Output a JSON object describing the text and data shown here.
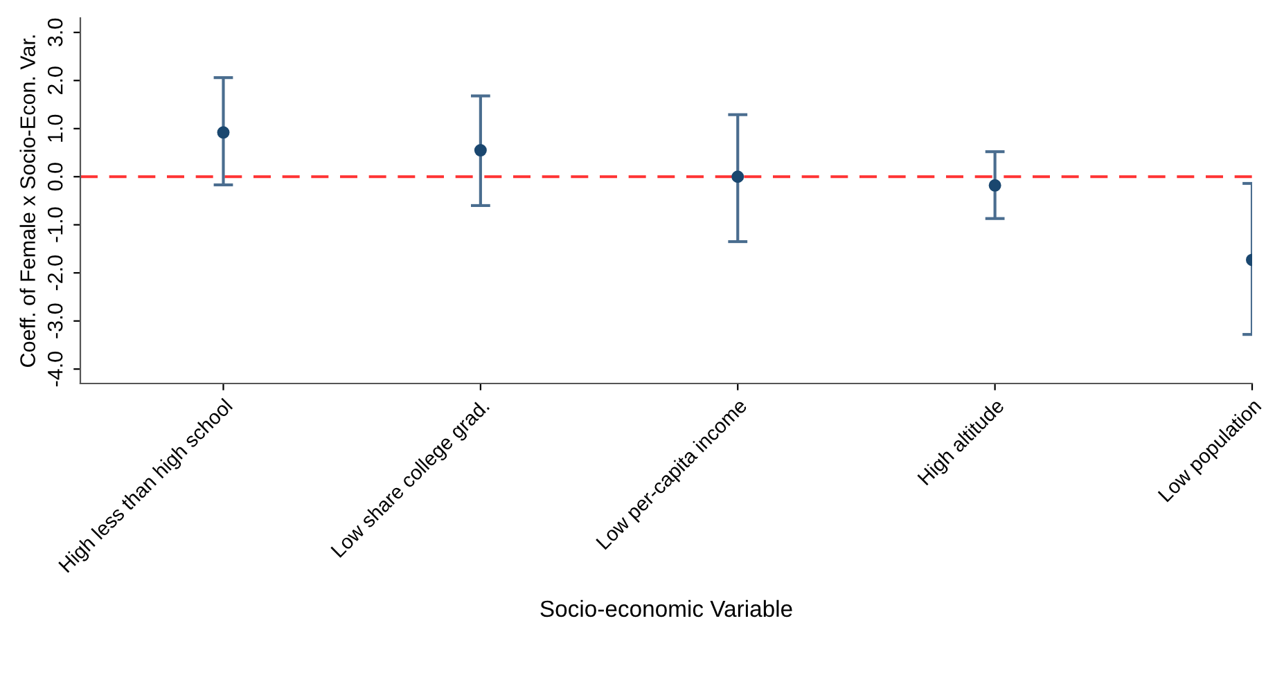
{
  "chart_data": {
    "type": "scatter",
    "xlabel": "Socio-economic Variable",
    "ylabel": "Coeff. of Female x Socio-Econ. Var.",
    "categories": [
      "High less than high school",
      "Low share college grad.",
      "Low per-capita income",
      "High altitude",
      "Low population"
    ],
    "series": [
      {
        "color": "#1a476f",
        "values": [
          0.92,
          0.55,
          0.0,
          -0.18,
          -1.73
        ],
        "errors": [
          [
            -0.17,
            2.06
          ],
          [
            -0.6,
            1.68
          ],
          [
            -1.35,
            1.29
          ],
          [
            -0.87,
            0.52
          ],
          [
            -3.28,
            -0.14
          ]
        ]
      }
    ],
    "ylim": [
      -4.3,
      3.3
    ],
    "yticks": [
      {
        "value": -4,
        "label": "-4.0"
      },
      {
        "value": -3,
        "label": "-3.0"
      },
      {
        "value": -2,
        "label": "-2.0"
      },
      {
        "value": -1,
        "label": "-1.0"
      },
      {
        "value": 0,
        "label": "0.0"
      },
      {
        "value": 1,
        "label": "1.0"
      },
      {
        "value": 2,
        "label": "2.0"
      },
      {
        "value": 3,
        "label": "3.0"
      }
    ],
    "ref_lines": [
      {
        "axis": "y",
        "value": 0,
        "color": "#ff3333",
        "line_style": "dashed"
      }
    ],
    "marker": "circle",
    "grid": false,
    "legend": false
  }
}
